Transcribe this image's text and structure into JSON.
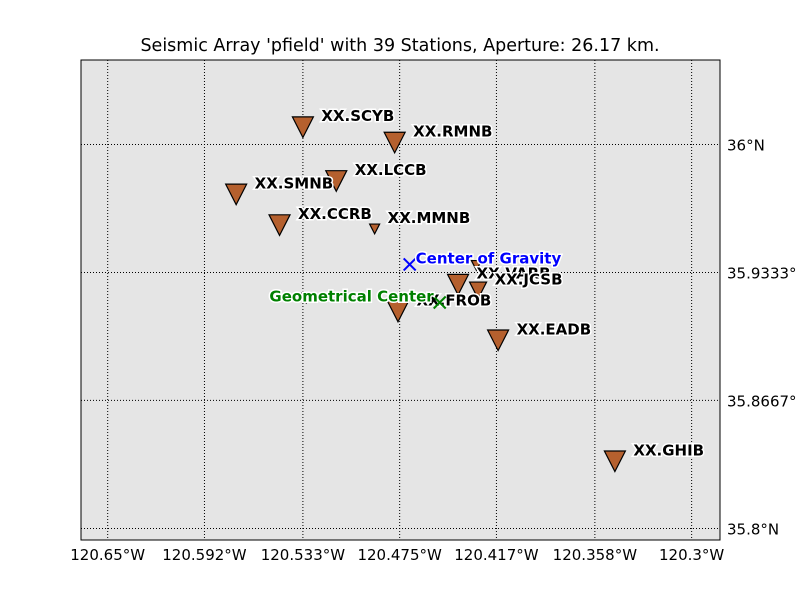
{
  "title": "Seismic Array 'pfield' with 39 Stations, Aperture: 26.17 km.",
  "chart_data": {
    "type": "scatter",
    "title": "Seismic Array 'pfield' with 39 Stations, Aperture: 26.17 km.",
    "xlabel": "",
    "ylabel": "",
    "xlim": [
      -120.666,
      -120.283
    ],
    "ylim": [
      35.794,
      36.044
    ],
    "grid": true,
    "x_ticks": [
      {
        "value": -120.65,
        "label": "120.65°W"
      },
      {
        "value": -120.592,
        "label": "120.592°W"
      },
      {
        "value": -120.533,
        "label": "120.533°W"
      },
      {
        "value": -120.475,
        "label": "120.475°W"
      },
      {
        "value": -120.417,
        "label": "120.417°W"
      },
      {
        "value": -120.358,
        "label": "120.358°W"
      },
      {
        "value": -120.3,
        "label": "120.3°W"
      }
    ],
    "y_ticks": [
      {
        "value": 35.8,
        "label": "35.8°N"
      },
      {
        "value": 35.8667,
        "label": "35.8667°"
      },
      {
        "value": 35.9333,
        "label": "35.9333°"
      },
      {
        "value": 36.0,
        "label": "36°N"
      }
    ],
    "stations": [
      {
        "name": "XX.SCYB",
        "lon": -120.533,
        "lat": 36.009,
        "size": "large"
      },
      {
        "name": "XX.RMNB",
        "lon": -120.478,
        "lat": 36.001,
        "size": "large"
      },
      {
        "name": "XX.LCCB",
        "lon": -120.513,
        "lat": 35.981,
        "size": "large"
      },
      {
        "name": "XX.SMNB",
        "lon": -120.573,
        "lat": 35.974,
        "size": "large"
      },
      {
        "name": "XX.CCRB",
        "lon": -120.547,
        "lat": 35.958,
        "size": "large"
      },
      {
        "name": "XX.MMNB",
        "lon": -120.49,
        "lat": 35.956,
        "size": "small"
      },
      {
        "name": "",
        "lon": -120.429,
        "lat": 35.937,
        "size": "small"
      },
      {
        "name": "XX.VARB",
        "lon": -120.44,
        "lat": 35.927,
        "size": "large"
      },
      {
        "name": "XX.JCSB",
        "lon": -120.428,
        "lat": 35.924,
        "size": "medium"
      },
      {
        "name": "",
        "lon": -120.531,
        "lat": 35.92,
        "size": "small"
      },
      {
        "name": "XX.FROB",
        "lon": -120.476,
        "lat": 35.913,
        "size": "large"
      },
      {
        "name": "XX.EADB",
        "lon": -120.416,
        "lat": 35.898,
        "size": "large"
      },
      {
        "name": "XX.GHIB",
        "lon": -120.346,
        "lat": 35.835,
        "size": "large"
      }
    ],
    "annotations": [
      {
        "label": "Center of Gravity",
        "lon": -120.469,
        "lat": 35.9375,
        "color": "#0000ff",
        "marker": "x"
      },
      {
        "label": "Geometrical Center",
        "lon": -120.451,
        "lat": 35.9177,
        "color": "#008000",
        "marker": "x"
      }
    ],
    "colors": {
      "background": "#e5e5e5",
      "station_fill": "#b5602e",
      "station_edge": "#000000"
    }
  }
}
